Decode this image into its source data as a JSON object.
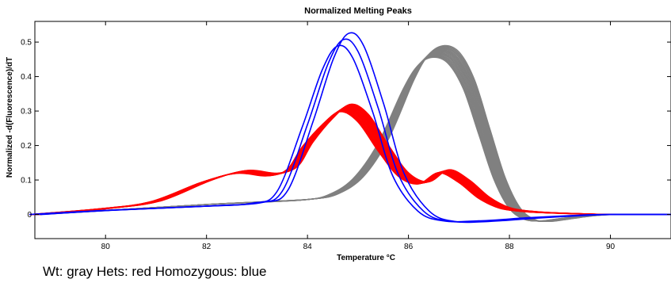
{
  "chart_data": {
    "type": "line",
    "title": "Normalized Melting Peaks",
    "xlabel": "Temperature °C",
    "ylabel": "Normalized -d(Fluorescence)/dT",
    "xlim": [
      78.6,
      91.2
    ],
    "ylim": [
      -0.07,
      0.56
    ],
    "xticks": [
      80,
      82,
      84,
      86,
      88,
      90
    ],
    "yticks": [
      0,
      0.1,
      0.2,
      0.3,
      0.4,
      0.5
    ],
    "ytick_labels": [
      "0",
      "0.1",
      "0.2",
      "0.3",
      "0.4",
      "0.5"
    ],
    "grid": false,
    "legend": "none",
    "groups": [
      {
        "color": "#808080",
        "count": 18,
        "x": [
          78.6,
          80,
          82,
          83,
          84,
          84.5,
          85,
          85.5,
          86,
          86.3,
          86.6,
          86.9,
          87.2,
          87.5,
          87.8,
          88.1,
          88.4,
          88.7,
          89,
          89.5,
          90,
          91.2
        ],
        "y": [
          0,
          0.012,
          0.03,
          0.037,
          0.045,
          0.06,
          0.11,
          0.22,
          0.39,
          0.465,
          0.49,
          0.47,
          0.39,
          0.25,
          0.11,
          0.02,
          -0.015,
          -0.02,
          -0.015,
          -0.005,
          0,
          0
        ]
      },
      {
        "color": "#ff0000",
        "count": 18,
        "x": [
          78.6,
          80,
          81,
          82,
          82.7,
          83.3,
          83.7,
          84,
          84.4,
          84.75,
          85.1,
          85.5,
          85.9,
          86.3,
          86.7,
          87.1,
          87.5,
          87.9,
          88.3,
          88.8,
          90,
          91.2
        ],
        "y": [
          0,
          0.018,
          0.04,
          0.1,
          0.128,
          0.12,
          0.14,
          0.21,
          0.28,
          0.32,
          0.29,
          0.2,
          0.12,
          0.095,
          0.13,
          0.1,
          0.05,
          0.02,
          0.01,
          0.005,
          0,
          0
        ]
      },
      {
        "color": "#0000ff",
        "count": 3,
        "x": [
          78.6,
          80,
          82,
          83,
          83.5,
          84,
          84.4,
          84.7,
          85,
          85.4,
          85.8,
          86.3,
          86.8,
          87.5,
          88.5,
          89.5,
          90,
          91.2
        ],
        "y": [
          0,
          0.012,
          0.025,
          0.035,
          0.07,
          0.27,
          0.45,
          0.525,
          0.49,
          0.32,
          0.12,
          0.01,
          -0.02,
          -0.02,
          -0.01,
          -0.002,
          0,
          0
        ]
      }
    ]
  },
  "caption": "Wt:  gray Hets: red Homozygous: blue"
}
